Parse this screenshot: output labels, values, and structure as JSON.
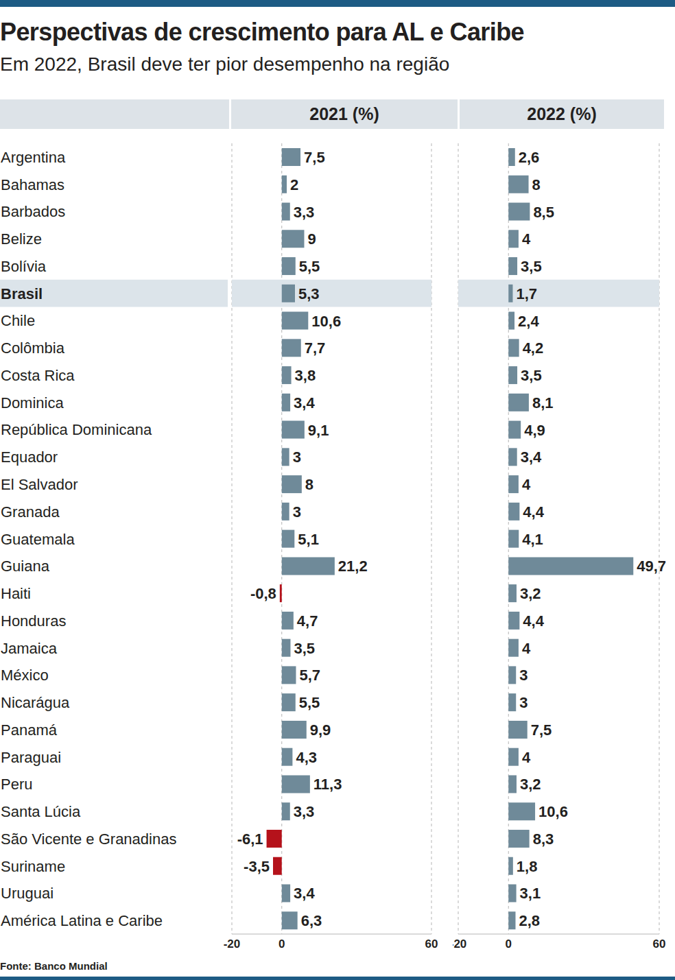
{
  "title": "Perspectivas de crescimento para AL e Caribe",
  "subtitle": "Em 2022, Brasil deve ter pior desempenho na região",
  "source": "Fonte: Banco Mundial",
  "chart_data": [
    {
      "type": "bar",
      "title": "2021 (%)",
      "orientation": "horizontal",
      "grid": true,
      "data_labels": true,
      "tick_labels": true,
      "categories": [
        "Argentina",
        "Bahamas",
        "Barbados",
        "Belize",
        "Bolívia",
        "Brasil",
        "Chile",
        "Colômbia",
        "Costa Rica",
        "Dominica",
        "República Dominicana",
        "Equador",
        "El Salvador",
        "Granada",
        "Guatemala",
        "Guiana",
        "Haiti",
        "Honduras",
        "Jamaica",
        "México",
        "Nicarágua",
        "Panamá",
        "Paraguai",
        "Peru",
        "Santa Lúcia",
        "São Vicente e Granadinas",
        "Suriname",
        "Uruguai",
        "América Latina e Caribe"
      ],
      "values": [
        7.5,
        2,
        3.3,
        9,
        5.5,
        5.3,
        10.6,
        7.7,
        3.8,
        3.4,
        9.1,
        3,
        8,
        3,
        5.1,
        21.2,
        -0.8,
        4.7,
        3.5,
        5.7,
        5.5,
        9.9,
        4.3,
        11.3,
        3.3,
        -6.1,
        -3.5,
        3.4,
        6.3
      ],
      "value_labels": [
        "7,5",
        "2",
        "3,3",
        "9",
        "5,5",
        "5,3",
        "10,6",
        "7,7",
        "3,8",
        "3,4",
        "9,1",
        "3",
        "8",
        "3",
        "5,1",
        "21,2",
        "-0,8",
        "4,7",
        "3,5",
        "5,7",
        "5,5",
        "9,9",
        "4,3",
        "11,3",
        "3,3",
        "-6,1",
        "-3,5",
        "3,4",
        "6,3"
      ],
      "colors": [
        "#6f8a99",
        "#6f8a99",
        "#6f8a99",
        "#6f8a99",
        "#6f8a99",
        "#6f8a99",
        "#6f8a99",
        "#6f8a99",
        "#6f8a99",
        "#6f8a99",
        "#6f8a99",
        "#6f8a99",
        "#6f8a99",
        "#6f8a99",
        "#6f8a99",
        "#6f8a99",
        "#b5121b",
        "#6f8a99",
        "#6f8a99",
        "#6f8a99",
        "#6f8a99",
        "#6f8a99",
        "#6f8a99",
        "#6f8a99",
        "#6f8a99",
        "#b5121b",
        "#b5121b",
        "#6f8a99",
        "#6f8a99"
      ],
      "xlim": [
        -20,
        60
      ],
      "xticks": [
        -20,
        0,
        60
      ]
    },
    {
      "type": "bar",
      "title": "2022 (%)",
      "orientation": "horizontal",
      "grid": true,
      "data_labels": true,
      "tick_labels": "x",
      "categories": [
        "Argentina",
        "Bahamas",
        "Barbados",
        "Belize",
        "Bolívia",
        "Brasil",
        "Chile",
        "Colômbia",
        "Costa Rica",
        "Dominica",
        "República Dominicana",
        "Equador",
        "El Salvador",
        "Granada",
        "Guatemala",
        "Guiana",
        "Haiti",
        "Honduras",
        "Jamaica",
        "México",
        "Nicarágua",
        "Panamá",
        "Paraguai",
        "Peru",
        "Santa Lúcia",
        "São Vicente e Granadinas",
        "Suriname",
        "Uruguai",
        "América Latina e Caribe"
      ],
      "values": [
        2.6,
        8,
        8.5,
        4,
        3.5,
        1.7,
        2.4,
        4.2,
        3.5,
        8.1,
        4.9,
        3.4,
        4,
        4.4,
        4.1,
        49.7,
        3.2,
        4.4,
        4,
        3,
        3,
        7.5,
        4,
        3.2,
        10.6,
        8.3,
        1.8,
        3.1,
        2.8
      ],
      "value_labels": [
        "2,6",
        "8",
        "8,5",
        "4",
        "3,5",
        "1,7",
        "2,4",
        "4,2",
        "3,5",
        "8,1",
        "4,9",
        "3,4",
        "4",
        "4,4",
        "4,1",
        "49,7",
        "3,2",
        "4,4",
        "4",
        "3",
        "3",
        "7,5",
        "4",
        "3,2",
        "10,6",
        "8,3",
        "1,8",
        "3,1",
        "2,8"
      ],
      "colors": [
        "#6f8a99",
        "#6f8a99",
        "#6f8a99",
        "#6f8a99",
        "#6f8a99",
        "#6f8a99",
        "#6f8a99",
        "#6f8a99",
        "#6f8a99",
        "#6f8a99",
        "#6f8a99",
        "#6f8a99",
        "#6f8a99",
        "#6f8a99",
        "#6f8a99",
        "#6f8a99",
        "#6f8a99",
        "#6f8a99",
        "#6f8a99",
        "#6f8a99",
        "#6f8a99",
        "#6f8a99",
        "#6f8a99",
        "#6f8a99",
        "#6f8a99",
        "#6f8a99",
        "#6f8a99",
        "#6f8a99",
        "#6f8a99"
      ],
      "xlim": [
        -20,
        60
      ],
      "xticks": [
        -20,
        0,
        60
      ]
    }
  ]
}
